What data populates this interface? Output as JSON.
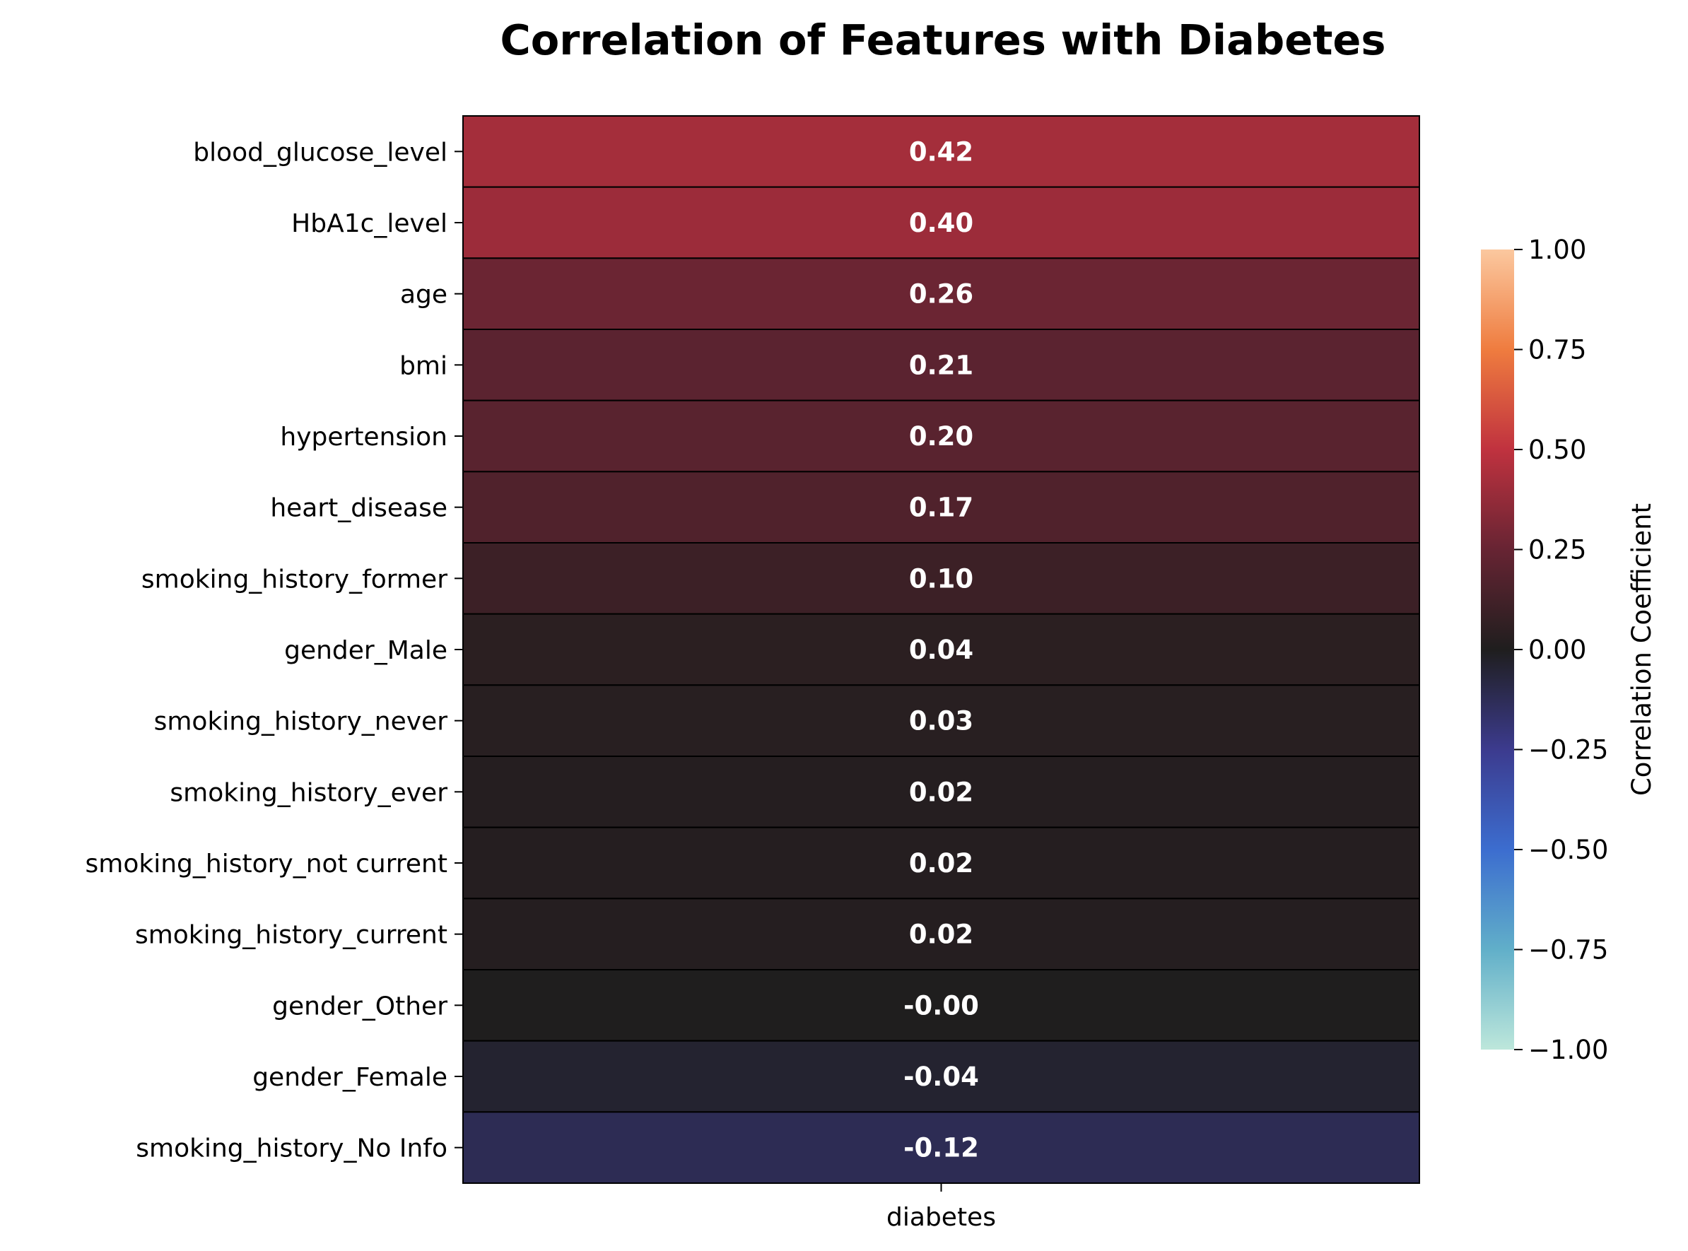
{
  "chart_data": {
    "type": "heatmap",
    "title": "Correlation of Features with Diabetes",
    "column_label": "diabetes",
    "rows": [
      {
        "feature": "blood_glucose_level",
        "value": 0.42,
        "label": "0.42"
      },
      {
        "feature": "HbA1c_level",
        "value": 0.4,
        "label": "0.40"
      },
      {
        "feature": "age",
        "value": 0.26,
        "label": "0.26"
      },
      {
        "feature": "bmi",
        "value": 0.21,
        "label": "0.21"
      },
      {
        "feature": "hypertension",
        "value": 0.2,
        "label": "0.20"
      },
      {
        "feature": "heart_disease",
        "value": 0.17,
        "label": "0.17"
      },
      {
        "feature": "smoking_history_former",
        "value": 0.1,
        "label": "0.10"
      },
      {
        "feature": "gender_Male",
        "value": 0.04,
        "label": "0.04"
      },
      {
        "feature": "smoking_history_never",
        "value": 0.03,
        "label": "0.03"
      },
      {
        "feature": "smoking_history_ever",
        "value": 0.02,
        "label": "0.02"
      },
      {
        "feature": "smoking_history_not current",
        "value": 0.02,
        "label": "0.02"
      },
      {
        "feature": "smoking_history_current",
        "value": 0.02,
        "label": "0.02"
      },
      {
        "feature": "gender_Other",
        "value": -0.0,
        "label": "-0.00"
      },
      {
        "feature": "gender_Female",
        "value": -0.04,
        "label": "-0.04"
      },
      {
        "feature": "smoking_history_No Info",
        "value": -0.12,
        "label": "-0.12"
      }
    ],
    "colorbar": {
      "label": "Correlation Coefficient",
      "range": [
        -1,
        1
      ],
      "ticks": [
        {
          "value": 1.0,
          "label": "1.00"
        },
        {
          "value": 0.75,
          "label": "0.75"
        },
        {
          "value": 0.5,
          "label": "0.50"
        },
        {
          "value": 0.25,
          "label": "0.25"
        },
        {
          "value": 0.0,
          "label": "0.00"
        },
        {
          "value": -0.25,
          "label": "−0.25"
        },
        {
          "value": -0.5,
          "label": "−0.50"
        },
        {
          "value": -0.75,
          "label": "−0.75"
        },
        {
          "value": -1.0,
          "label": "−1.00"
        }
      ],
      "colormap": "icefire",
      "stops": [
        {
          "value": -1.0,
          "color": "#bde7db"
        },
        {
          "value": -0.75,
          "color": "#61afc9"
        },
        {
          "value": -0.5,
          "color": "#3c6dcf"
        },
        {
          "value": -0.25,
          "color": "#3c3b8e"
        },
        {
          "value": 0.0,
          "color": "#1f1e1e"
        },
        {
          "value": 0.25,
          "color": "#672433"
        },
        {
          "value": 0.5,
          "color": "#c0323f"
        },
        {
          "value": 0.75,
          "color": "#ef7c3f"
        },
        {
          "value": 1.0,
          "color": "#fbc89f"
        }
      ]
    },
    "grid_line_color": "#000000"
  }
}
